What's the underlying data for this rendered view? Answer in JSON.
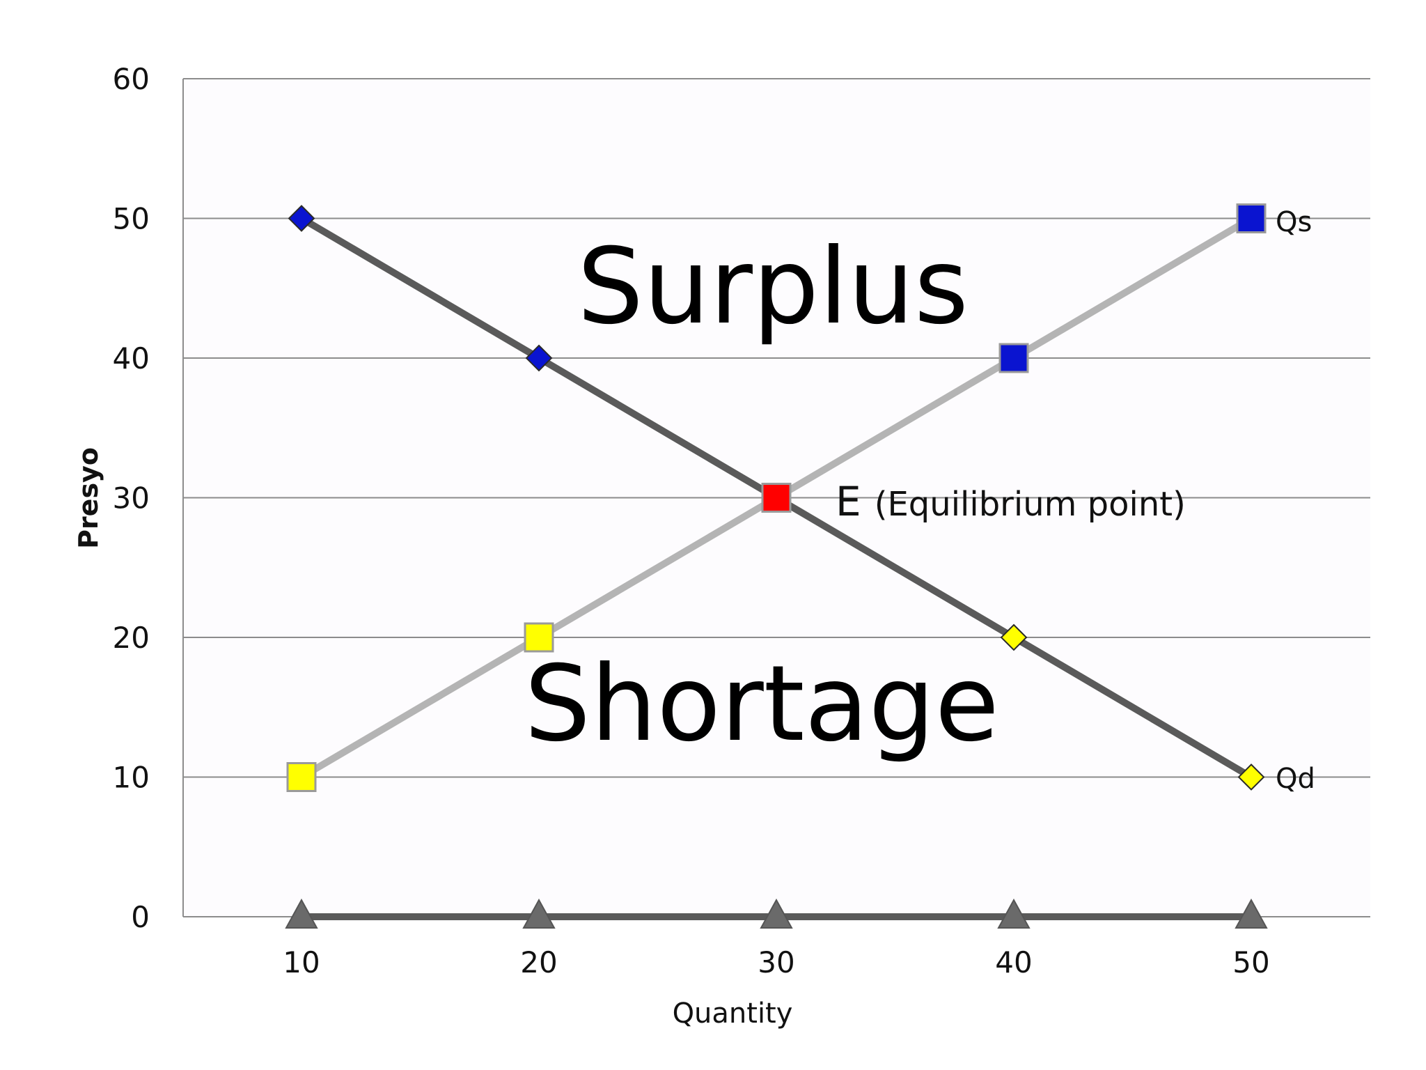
{
  "chart_data": {
    "type": "line",
    "title": "",
    "xlabel": "Quantity",
    "ylabel": "Presyo",
    "categories": [
      10,
      20,
      30,
      40,
      50
    ],
    "ylim": [
      0,
      60
    ],
    "yticks": [
      0,
      10,
      20,
      30,
      40,
      50,
      60
    ],
    "grid": true,
    "series": [
      {
        "name": "Qd",
        "values": [
          50,
          40,
          30,
          20,
          10
        ],
        "color": "#5a5a5a",
        "marker": "diamond",
        "marker_colors": [
          "#0a14d0",
          "#0a14d0",
          "#ff0000",
          "#ffff00",
          "#ffff00"
        ]
      },
      {
        "name": "Qs",
        "values": [
          10,
          20,
          30,
          40,
          50
        ],
        "color": "#b4b4b4",
        "marker": "square",
        "marker_colors": [
          "#ffff00",
          "#ffff00",
          "#ff0000",
          "#0a14d0",
          "#0a14d0"
        ]
      },
      {
        "name": "",
        "values": [
          0,
          0,
          0,
          0,
          0
        ],
        "color": "#5a5a5a",
        "marker": "triangle",
        "marker_colors": [
          "#6a6a6a",
          "#6a6a6a",
          "#6a6a6a",
          "#6a6a6a",
          "#6a6a6a"
        ]
      }
    ],
    "annotations": {
      "surplus": "Surplus",
      "shortage": "Shortage",
      "equilibrium_letter": "E",
      "equilibrium_text": "(Equilibrium point)"
    }
  }
}
